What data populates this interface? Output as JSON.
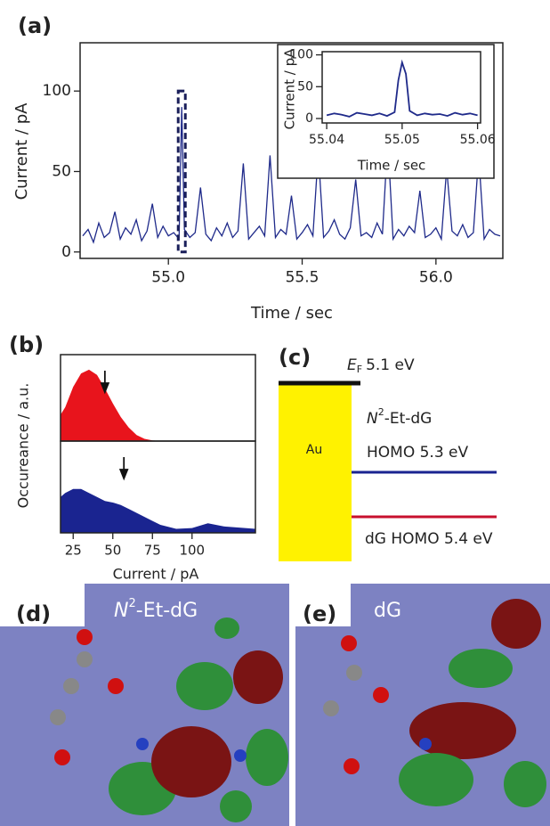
{
  "chart_data": [
    {
      "type": "line",
      "panel_label": "(a)",
      "xlabel": "Time / sec",
      "ylabel": "Current / pA",
      "xlim": [
        54.67,
        56.25
      ],
      "ylim": [
        -4,
        130
      ],
      "xticks": [
        {
          "value": 55,
          "label": "55.0"
        },
        55.5,
        {
          "value": 56,
          "label": "56.0"
        }
      ],
      "yticks": [
        0,
        50,
        100
      ],
      "highlight_x": 55.05,
      "highlight_y": [
        0,
        100
      ],
      "x": [
        54.68,
        54.7,
        54.72,
        54.74,
        54.76,
        54.78,
        54.8,
        54.82,
        54.84,
        54.86,
        54.88,
        54.9,
        54.92,
        54.94,
        54.96,
        54.98,
        55.0,
        55.02,
        55.04,
        55.05,
        55.06,
        55.08,
        55.1,
        55.12,
        55.14,
        55.16,
        55.18,
        55.2,
        55.22,
        55.24,
        55.26,
        55.28,
        55.3,
        55.32,
        55.34,
        55.36,
        55.38,
        55.4,
        55.42,
        55.44,
        55.46,
        55.48,
        55.5,
        55.52,
        55.54,
        55.56,
        55.58,
        55.6,
        55.62,
        55.64,
        55.66,
        55.68,
        55.7,
        55.72,
        55.74,
        55.76,
        55.78,
        55.8,
        55.82,
        55.84,
        55.86,
        55.88,
        55.9,
        55.92,
        55.94,
        55.96,
        55.98,
        56.0,
        56.02,
        56.04,
        56.06,
        56.08,
        56.1,
        56.12,
        56.14,
        56.16,
        56.18,
        56.2,
        56.22,
        56.24
      ],
      "series": [
        {
          "color": "#1f2a8a",
          "values": [
            10,
            14,
            6,
            18,
            9,
            12,
            25,
            8,
            15,
            11,
            20,
            7,
            13,
            30,
            9,
            16,
            10,
            12,
            8,
            90,
            14,
            9,
            12,
            40,
            11,
            7,
            15,
            10,
            18,
            9,
            13,
            55,
            8,
            12,
            16,
            10,
            60,
            9,
            14,
            11,
            35,
            8,
            12,
            17,
            10,
            62,
            9,
            13,
            20,
            11,
            8,
            15,
            45,
            10,
            12,
            9,
            18,
            11,
            70,
            8,
            14,
            10,
            16,
            12,
            38,
            9,
            11,
            15,
            8,
            52,
            13,
            10,
            17,
            9,
            12,
            60,
            8,
            14,
            11,
            10
          ]
        }
      ]
    },
    {
      "type": "line",
      "xlabel": "Time / sec",
      "ylabel": "Current / pA",
      "xlim": [
        55.0394,
        55.0604
      ],
      "ylim": [
        -7,
        105
      ],
      "xticks": [
        55.04,
        55.05,
        55.06
      ],
      "yticks": [
        0,
        50,
        100
      ],
      "x": [
        55.04,
        55.041,
        55.042,
        55.043,
        55.044,
        55.045,
        55.046,
        55.047,
        55.048,
        55.049,
        55.0495,
        55.05,
        55.0505,
        55.051,
        55.052,
        55.053,
        55.054,
        55.055,
        55.056,
        55.057,
        55.058,
        55.059,
        55.06
      ],
      "series": [
        {
          "color": "#1f2a8a",
          "values": [
            5,
            8,
            6,
            3,
            9,
            7,
            5,
            8,
            4,
            10,
            60,
            88,
            70,
            12,
            5,
            8,
            6,
            7,
            4,
            9,
            6,
            8,
            5
          ]
        }
      ]
    },
    {
      "type": "area",
      "panel_label": "(b)",
      "ylabel": "Occureance / a.u.",
      "xlim": [
        17,
        140
      ],
      "ylim": [
        0,
        1.15
      ],
      "arrow_x": 45,
      "x": [
        17,
        20,
        25,
        30,
        35,
        40,
        45,
        50,
        55,
        60,
        65,
        70,
        75,
        80,
        90,
        100,
        110,
        120,
        140
      ],
      "series": [
        {
          "color": "#e8141c",
          "values": [
            0.35,
            0.45,
            0.72,
            0.9,
            0.95,
            0.88,
            0.7,
            0.5,
            0.32,
            0.18,
            0.08,
            0.03,
            0.01,
            0,
            0,
            0,
            0,
            0,
            0
          ]
        }
      ]
    },
    {
      "type": "area",
      "xlabel": "Current / pA",
      "xlim": [
        17,
        140
      ],
      "ylim": [
        0,
        1.15
      ],
      "arrow_x": 57,
      "xticks": [
        25,
        50,
        75,
        100
      ],
      "x": [
        17,
        20,
        25,
        30,
        35,
        40,
        45,
        50,
        55,
        60,
        65,
        70,
        75,
        80,
        90,
        100,
        110,
        120,
        140
      ],
      "series": [
        {
          "color": "#1a2490",
          "values": [
            0.45,
            0.5,
            0.55,
            0.55,
            0.5,
            0.45,
            0.4,
            0.38,
            0.35,
            0.3,
            0.25,
            0.2,
            0.15,
            0.1,
            0.05,
            0.06,
            0.12,
            0.08,
            0.05
          ]
        }
      ]
    }
  ],
  "energy_diagram": {
    "panel_label": "(c)",
    "metal": "Au",
    "fermi_symbol": "E",
    "fermi_subscript": "F",
    "fermi_text": "5.1 eV",
    "fermi_level": 5.1,
    "molecule_symbol": "N",
    "molecule_superscript": "2",
    "molecule_text": "-Et-dG",
    "levels": [
      {
        "label": "HOMO 5.3 eV",
        "energy": 5.3,
        "color": "#1a2490"
      },
      {
        "label": "dG HOMO 5.4 eV",
        "energy": 5.4,
        "color": "#c8102e"
      }
    ]
  },
  "orbitals": [
    {
      "panel_label": "(d)",
      "symbol": "N",
      "superscript": "2",
      "text": "-Et-dG"
    },
    {
      "panel_label": "(e)",
      "text": "dG"
    }
  ]
}
